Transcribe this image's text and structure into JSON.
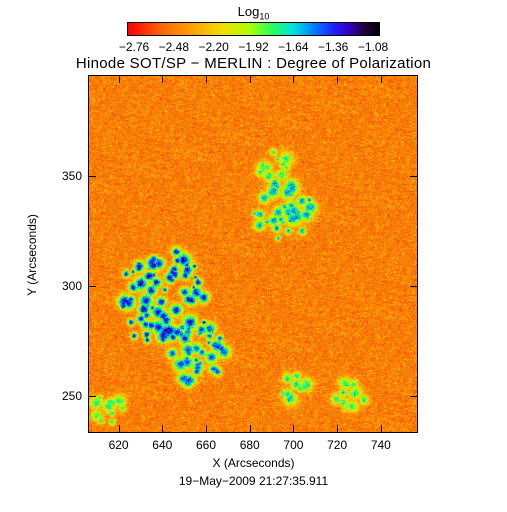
{
  "colorbar": {
    "label_base": "Log",
    "label_sub": "10",
    "ticks": [
      "−2.76",
      "−2.48",
      "−2.20",
      "−1.92",
      "−1.64",
      "−1.36",
      "−1.08"
    ],
    "range": [
      -2.76,
      -1.08
    ],
    "colormap": "rainbow"
  },
  "chart_data": {
    "type": "heatmap",
    "title": "Hinode SOT/SP − MERLIN : Degree of Polarization",
    "xlabel": "X (Arcseconds)",
    "ylabel": "Y (Arcseconds)",
    "xlim": [
      606,
      757
    ],
    "ylim": [
      233,
      396
    ],
    "xticks": [
      620,
      640,
      660,
      680,
      700,
      720,
      740
    ],
    "yticks": [
      250,
      300,
      350
    ],
    "clim": [
      -2.76,
      -1.08
    ],
    "background_level": -2.45,
    "active_regions": [
      {
        "x": 640,
        "y": 295,
        "level": -1.55,
        "extent": "large"
      },
      {
        "x": 655,
        "y": 270,
        "level": -1.65,
        "extent": "medium"
      },
      {
        "x": 695,
        "y": 335,
        "level": -1.75,
        "extent": "medium"
      },
      {
        "x": 690,
        "y": 355,
        "level": -1.9,
        "extent": "small"
      },
      {
        "x": 725,
        "y": 250,
        "level": -1.9,
        "extent": "small"
      },
      {
        "x": 700,
        "y": 255,
        "level": -1.85,
        "extent": "small"
      },
      {
        "x": 615,
        "y": 245,
        "level": -1.9,
        "extent": "small"
      }
    ]
  },
  "timestamp": "19−May−2009 21:27:35.911"
}
